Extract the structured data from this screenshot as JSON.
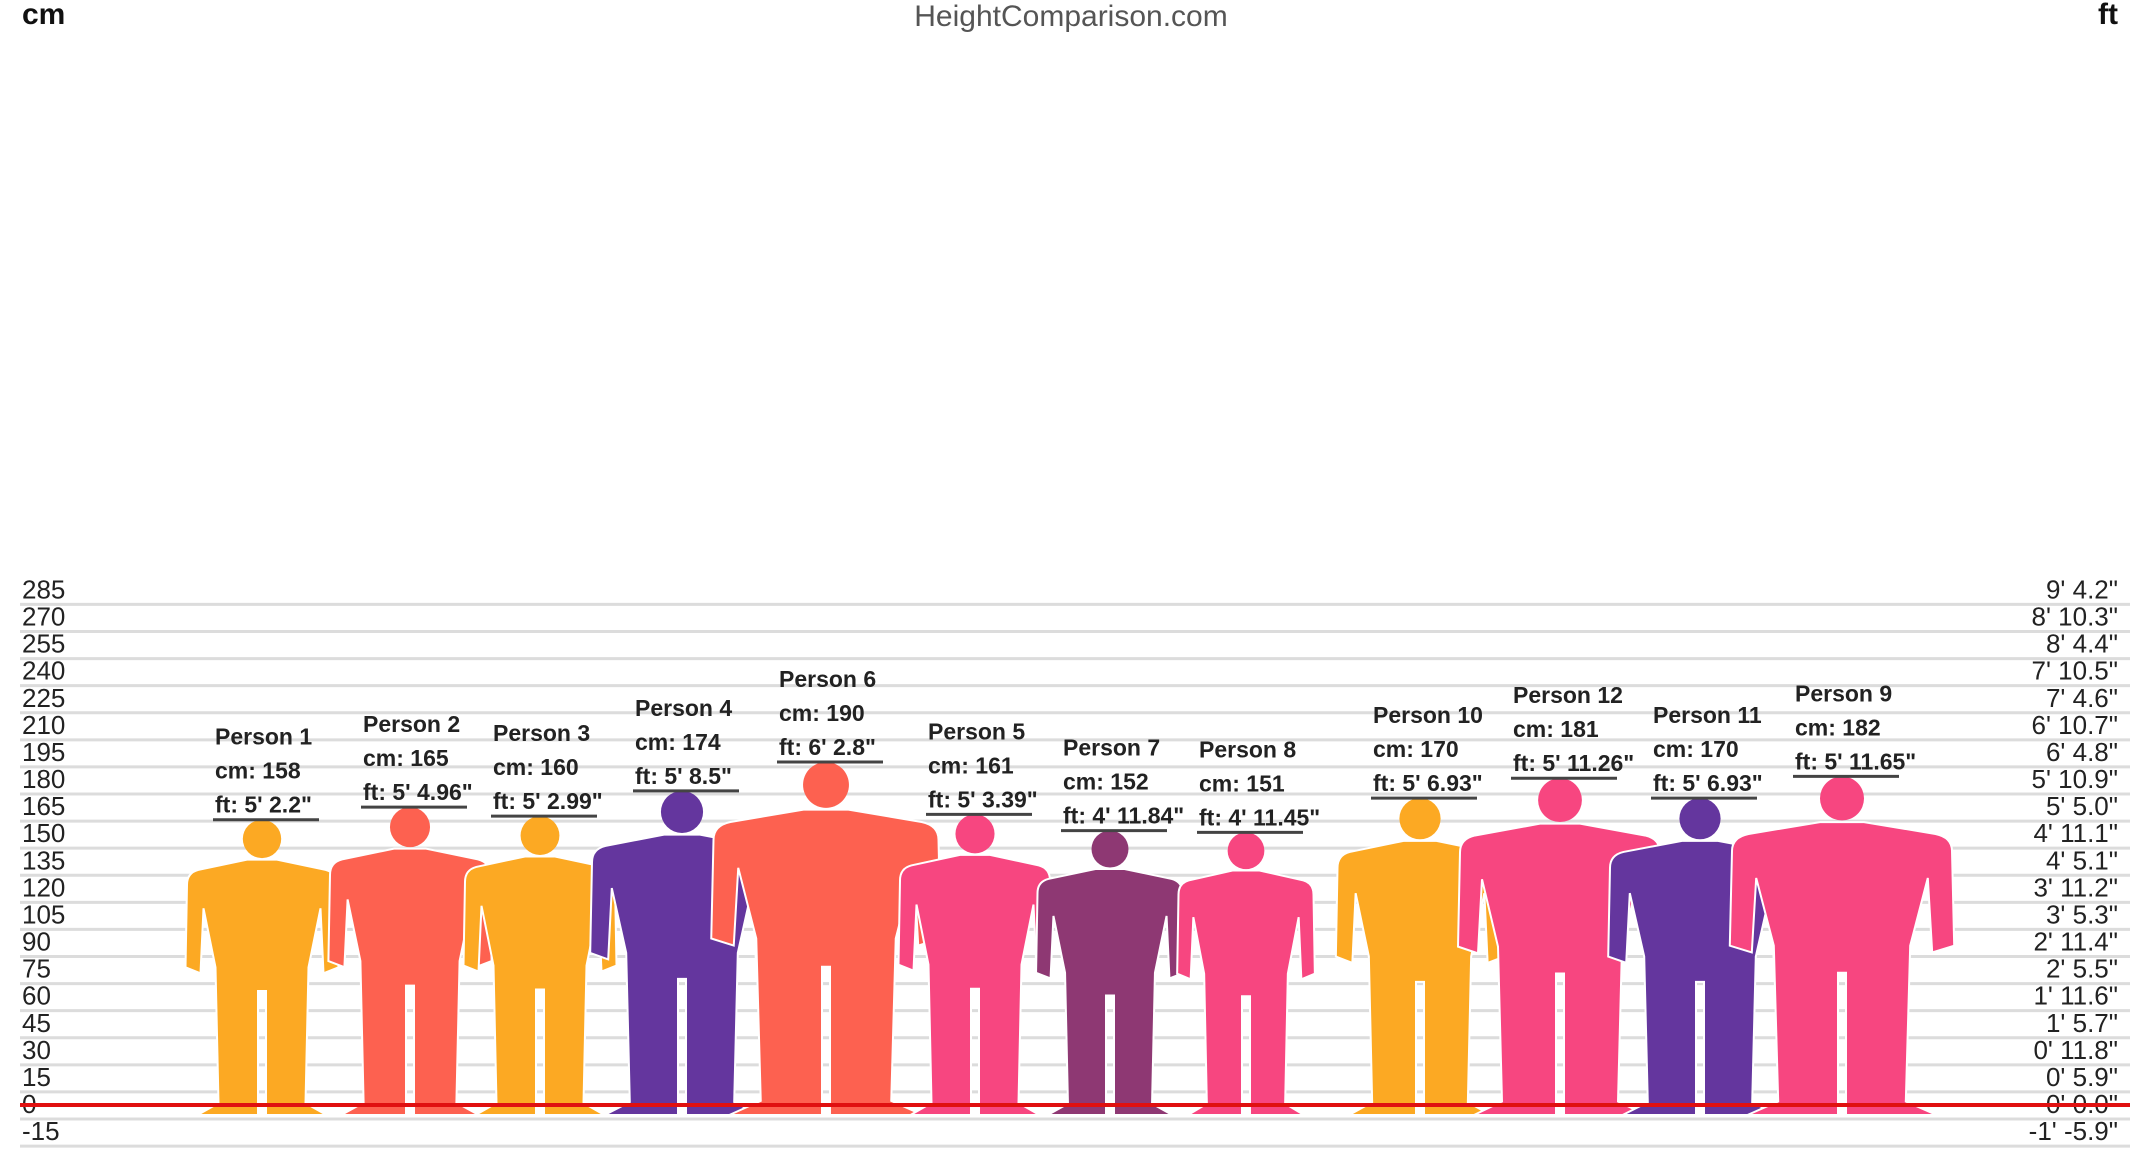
{
  "site": "HeightComparison.com",
  "chart_data": {
    "type": "bar",
    "left_unit": "cm",
    "right_unit": "ft",
    "ylim": [
      -15,
      285
    ],
    "grid": true,
    "y_ticks": [
      {
        "cm": "285",
        "ft": "9' 4.2\""
      },
      {
        "cm": "270",
        "ft": "8' 10.3\""
      },
      {
        "cm": "255",
        "ft": "8' 4.4\""
      },
      {
        "cm": "240",
        "ft": "7' 10.5\""
      },
      {
        "cm": "225",
        "ft": "7' 4.6\""
      },
      {
        "cm": "210",
        "ft": "6' 10.7\""
      },
      {
        "cm": "195",
        "ft": "6' 4.8\""
      },
      {
        "cm": "180",
        "ft": "5' 10.9\""
      },
      {
        "cm": "165",
        "ft": "5' 5.0\""
      },
      {
        "cm": "150",
        "ft": "4' 11.1\""
      },
      {
        "cm": "135",
        "ft": "4' 5.1\""
      },
      {
        "cm": "120",
        "ft": "3' 11.2\""
      },
      {
        "cm": "105",
        "ft": "3' 5.3\""
      },
      {
        "cm": "90",
        "ft": "2' 11.4\""
      },
      {
        "cm": "75",
        "ft": "2' 5.5\""
      },
      {
        "cm": "60",
        "ft": "1' 11.6\""
      },
      {
        "cm": "45",
        "ft": "1' 5.7\""
      },
      {
        "cm": "30",
        "ft": "0' 11.8\""
      },
      {
        "cm": "15",
        "ft": "0' 5.9\""
      },
      {
        "cm": "0",
        "ft": "0' 0.0\""
      },
      {
        "cm": "-15",
        "ft": "-1' -5.9\""
      }
    ],
    "people": [
      {
        "name": "Person 1",
        "cm_label": "cm: 158",
        "ft_label": "ft: 5' 2.2\"",
        "height_cm": 158,
        "color": "#FCA923"
      },
      {
        "name": "Person 2",
        "cm_label": "cm: 165",
        "ft_label": "ft: 5' 4.96\"",
        "height_cm": 165,
        "color": "#FD6150"
      },
      {
        "name": "Person 3",
        "cm_label": "cm: 160",
        "ft_label": "ft: 5' 2.99\"",
        "height_cm": 160,
        "color": "#FCA923"
      },
      {
        "name": "Person 4",
        "cm_label": "cm: 174",
        "ft_label": "ft: 5' 8.5\"",
        "height_cm": 174,
        "color": "#64369E"
      },
      {
        "name": "Person 6",
        "cm_label": "cm: 190",
        "ft_label": "ft: 6' 2.8\"",
        "height_cm": 190,
        "color": "#FD6150"
      },
      {
        "name": "Person 5",
        "cm_label": "cm: 161",
        "ft_label": "ft: 5' 3.39\"",
        "height_cm": 161,
        "color": "#F74680"
      },
      {
        "name": "Person 7",
        "cm_label": "cm: 152",
        "ft_label": "ft: 4' 11.84\"",
        "height_cm": 152,
        "color": "#8E3873"
      },
      {
        "name": "Person 8",
        "cm_label": "cm: 151",
        "ft_label": "ft: 4' 11.45\"",
        "height_cm": 151,
        "color": "#F74680"
      },
      {
        "name": "Person 10",
        "cm_label": "cm: 170",
        "ft_label": "ft: 5' 6.93\"",
        "height_cm": 170,
        "color": "#FCA923"
      },
      {
        "name": "Person 12",
        "cm_label": "cm: 181",
        "ft_label": "ft: 5' 11.26\"",
        "height_cm": 181,
        "color": "#F74680"
      },
      {
        "name": "Person 11",
        "cm_label": "cm: 170",
        "ft_label": "ft: 5' 6.93\"",
        "height_cm": 170,
        "color": "#64369E"
      },
      {
        "name": "Person 9",
        "cm_label": "cm: 182",
        "ft_label": "ft: 5' 11.65\"",
        "height_cm": 182,
        "color": "#F74680"
      }
    ]
  }
}
